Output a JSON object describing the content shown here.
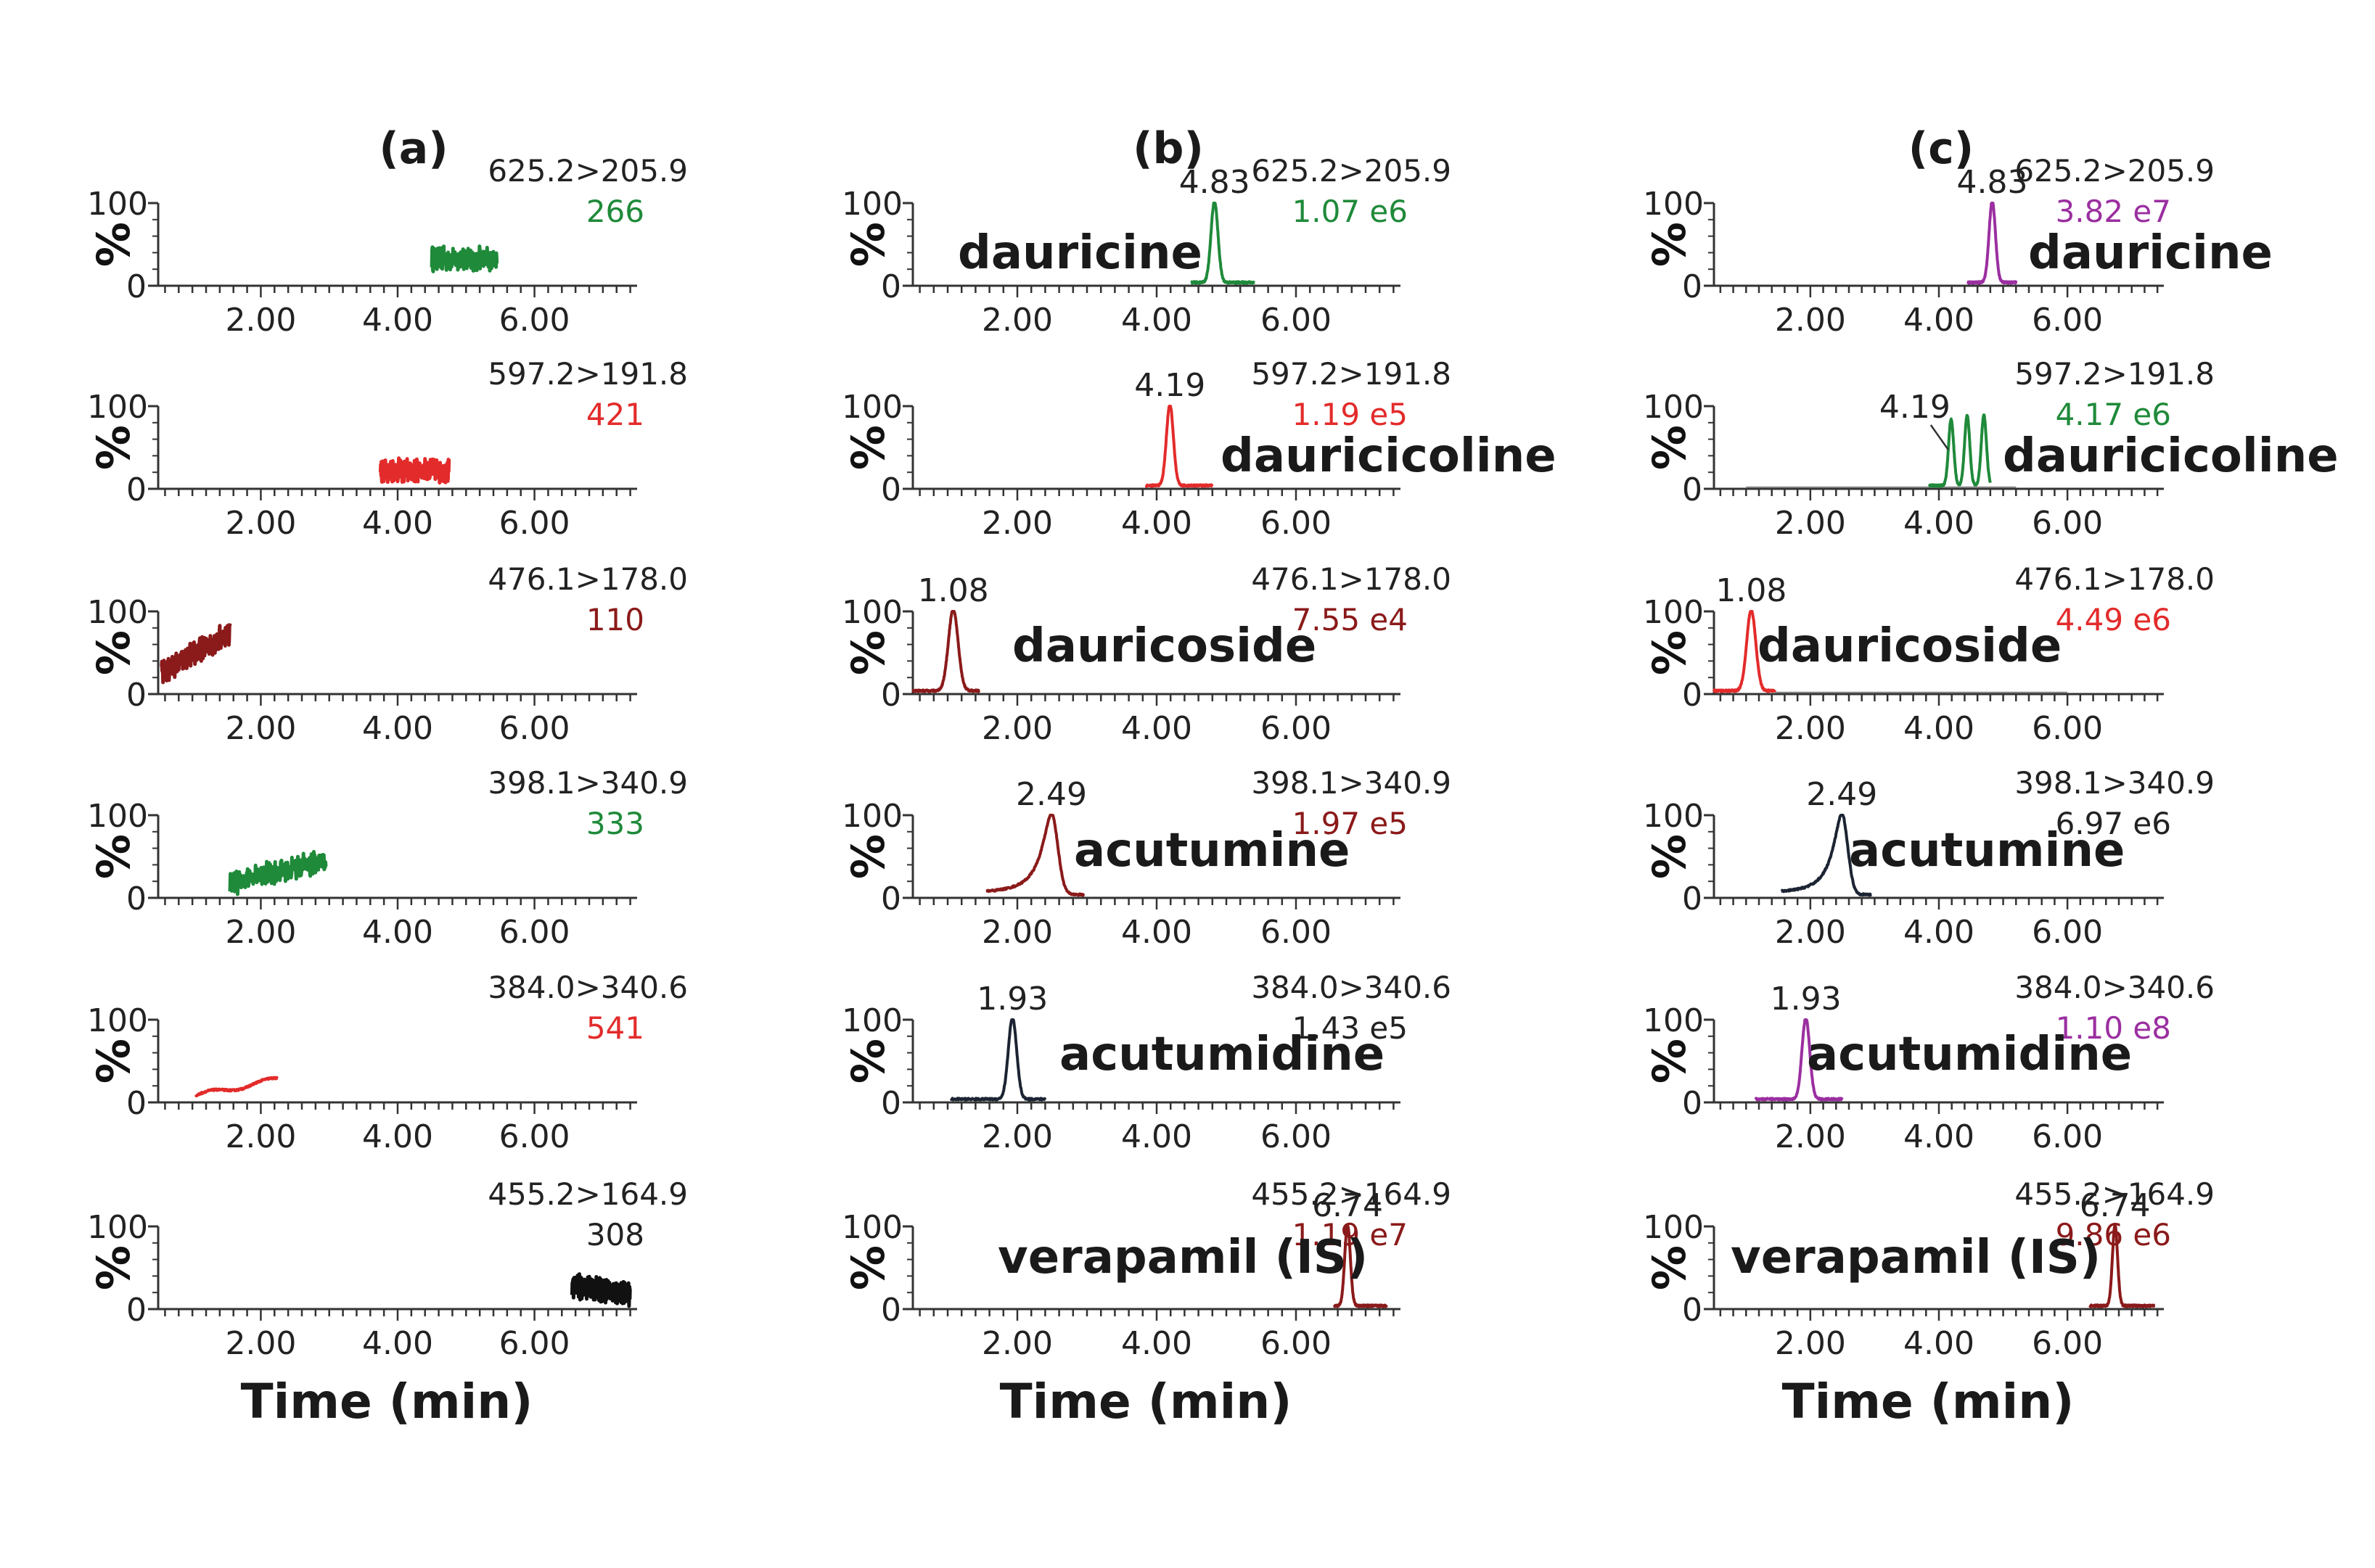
{
  "figure": {
    "x_axis_title": "Time (min)",
    "y_axis_label": "%",
    "y_ticks": [
      "0",
      "100"
    ],
    "x_tick_labels": [
      "2.00",
      "4.00",
      "6.00"
    ]
  },
  "chart_data": [
    {
      "panel": "(a)",
      "type": "line",
      "xlabel": "Time (min)",
      "ylabel": "%",
      "xlim": [
        0.5,
        7.5
      ],
      "ylim": [
        0,
        100
      ],
      "traces": [
        {
          "transition": "625.2>205.9",
          "intensity": "266",
          "color": "#1f8a3a",
          "x_range": [
            4.5,
            5.45
          ],
          "noise": true,
          "base": 32
        },
        {
          "transition": "597.2>191.8",
          "intensity": "421",
          "color": "#e32b2b",
          "x_range": [
            3.75,
            4.75
          ],
          "noise": true,
          "base": 22
        },
        {
          "transition": "476.1>178.0",
          "intensity": "110",
          "color": "#8b1a1a",
          "x_range": [
            0.55,
            1.55
          ],
          "noise": true,
          "base": 25,
          "ramp": 50
        },
        {
          "transition": "398.1>340.9",
          "intensity": "333",
          "color": "#1f8a3a",
          "x_range": [
            1.55,
            2.95
          ],
          "noise": true,
          "base": 18,
          "ramp": 28
        },
        {
          "transition": "384.0>340.6",
          "intensity": "541",
          "color": "#e32b2b",
          "x_range": [
            1.05,
            2.25
          ],
          "noise": false,
          "base": 8,
          "ramp": 20
        },
        {
          "transition": "455.2>164.9",
          "intensity": "308",
          "color": "#111111",
          "x_range": [
            6.55,
            7.4
          ],
          "noise": true,
          "base": 28,
          "ramp": -10
        }
      ]
    },
    {
      "panel": "(b)",
      "type": "line",
      "xlabel": "Time (min)",
      "ylabel": "%",
      "xlim": [
        0.5,
        7.5
      ],
      "ylim": [
        0,
        100
      ],
      "traces": [
        {
          "transition": "625.2>205.9",
          "intensity": "1.07 e6",
          "color": "#1f8a3a",
          "compound": "dauricine",
          "peak_label": "4.83",
          "peaks": [
            {
              "x": 4.83,
              "y": 98,
              "w": 0.05
            }
          ],
          "x_range": [
            4.5,
            5.4
          ]
        },
        {
          "transition": "597.2>191.8",
          "intensity": "1.19 e5",
          "color": "#e32b2b",
          "compound": "dauricicoline",
          "peak_label": "4.19",
          "peaks": [
            {
              "x": 4.19,
              "y": 98,
              "w": 0.05
            }
          ],
          "x_range": [
            3.85,
            4.8
          ]
        },
        {
          "transition": "476.1>178.0",
          "intensity": "7.55 e4",
          "color": "#8b1a1a",
          "compound": "dauricoside",
          "peak_label": "1.08",
          "peaks": [
            {
              "x": 1.08,
              "y": 98,
              "w": 0.07
            }
          ],
          "x_range": [
            0.5,
            1.45
          ]
        },
        {
          "transition": "398.1>340.9",
          "intensity": "1.97 e5",
          "color": "#8b1a1a",
          "compound": "acutumine",
          "peak_label": "2.49",
          "peaks": [
            {
              "x": 2.49,
              "y": 98,
              "w": 0.09,
              "tail": 0.3
            }
          ],
          "x_range": [
            1.55,
            2.95
          ]
        },
        {
          "transition": "384.0>340.6",
          "intensity": "1.43 e5",
          "color": "#1c2433",
          "compound": "acutumidine",
          "peak_label": "1.93",
          "peaks": [
            {
              "x": 1.93,
              "y": 98,
              "w": 0.06
            }
          ],
          "x_range": [
            1.05,
            2.4
          ]
        },
        {
          "transition": "455.2>164.9",
          "intensity": "1.19 e7",
          "color": "#8b1a1a",
          "compound": "verapamil (IS)",
          "peak_label": "6.74",
          "peaks": [
            {
              "x": 6.74,
              "y": 98,
              "w": 0.04
            }
          ],
          "x_range": [
            6.55,
            7.3
          ]
        }
      ]
    },
    {
      "panel": "(c)",
      "type": "line",
      "xlabel": "Time (min)",
      "ylabel": "%",
      "xlim": [
        0.5,
        7.5
      ],
      "ylim": [
        0,
        100
      ],
      "traces": [
        {
          "transition": "625.2>205.9",
          "intensity": "3.82 e7",
          "color": "#9b2fa0",
          "compound": "dauricine",
          "peak_label": "4.83",
          "peaks": [
            {
              "x": 4.83,
              "y": 98,
              "w": 0.05
            }
          ],
          "x_range": [
            4.45,
            5.2
          ]
        },
        {
          "transition": "597.2>191.8",
          "intensity": "4.17 e6",
          "color": "#1f8a3a",
          "compound": "dauricicoline",
          "peak_label": "4.19",
          "peaks": [
            {
              "x": 4.19,
              "y": 80,
              "w": 0.04
            },
            {
              "x": 4.44,
              "y": 85,
              "w": 0.04
            },
            {
              "x": 4.7,
              "y": 85,
              "w": 0.04
            }
          ],
          "x_range": [
            3.85,
            4.8
          ],
          "flat_range": [
            1.0,
            5.2
          ]
        },
        {
          "transition": "476.1>178.0",
          "intensity": "4.49 e6",
          "color": "#e32b2b",
          "compound": "dauricoside",
          "peak_label": "1.08",
          "peaks": [
            {
              "x": 1.08,
              "y": 98,
              "w": 0.07
            }
          ],
          "x_range": [
            0.5,
            1.45
          ],
          "flat_range": [
            1.45,
            6.0
          ]
        },
        {
          "transition": "398.1>340.9",
          "intensity": "6.97 e6",
          "color": "#1c2433",
          "compound": "acutumine",
          "peak_label": "2.49",
          "peaks": [
            {
              "x": 2.49,
              "y": 98,
              "w": 0.09,
              "tail": 0.3
            }
          ],
          "x_range": [
            1.55,
            2.95
          ]
        },
        {
          "transition": "384.0>340.6",
          "intensity": "1.10 e8",
          "color": "#9b2fa0",
          "compound": "acutumidine",
          "peak_label": "1.93",
          "peaks": [
            {
              "x": 1.93,
              "y": 98,
              "w": 0.06
            }
          ],
          "x_range": [
            1.15,
            2.5
          ]
        },
        {
          "transition": "455.2>164.9",
          "intensity": "9.86 e6",
          "color": "#8b1a1a",
          "compound": "verapamil (IS)",
          "peak_label": "6.74",
          "peaks": [
            {
              "x": 6.74,
              "y": 98,
              "w": 0.04
            }
          ],
          "x_range": [
            6.35,
            7.35
          ]
        }
      ]
    }
  ]
}
